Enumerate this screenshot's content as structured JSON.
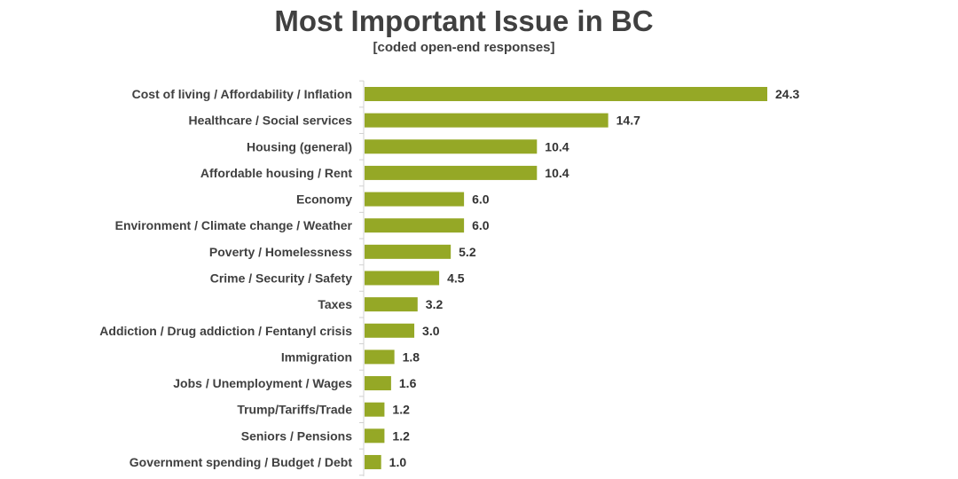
{
  "chart_data": {
    "type": "bar",
    "orientation": "horizontal",
    "title": "Most Important Issue in BC",
    "subtitle": "[coded open-end responses]",
    "xlabel": "",
    "ylabel": "",
    "xlim": [
      0,
      25
    ],
    "grid": false,
    "legend": "none",
    "bar_color": "#95a826",
    "categories": [
      "Cost of living / Affordability / Inflation",
      "Healthcare / Social services",
      "Housing (general)",
      "Affordable housing / Rent",
      "Economy",
      "Environment / Climate change / Weather",
      "Poverty / Homelessness",
      "Crime / Security / Safety",
      "Taxes",
      "Addiction / Drug addiction / Fentanyl crisis",
      "Immigration",
      "Jobs / Unemployment / Wages",
      "Trump/Tariffs/Trade",
      "Seniors / Pensions",
      "Government spending / Budget / Debt"
    ],
    "values": [
      24.3,
      14.7,
      10.4,
      10.4,
      6.0,
      6.0,
      5.2,
      4.5,
      3.2,
      3.0,
      1.8,
      1.6,
      1.2,
      1.2,
      1.0
    ]
  }
}
